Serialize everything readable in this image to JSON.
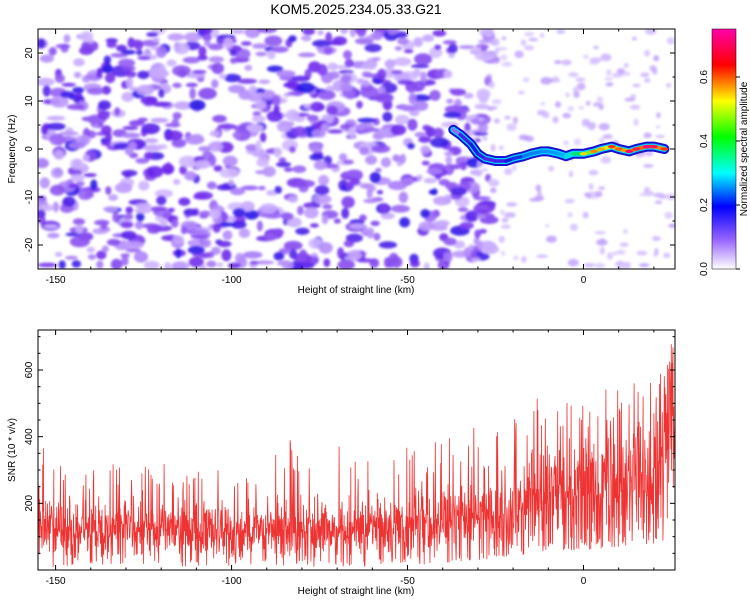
{
  "title": "KOM5.2025.234.05.33.G21",
  "chart_data": [
    {
      "type": "heatmap",
      "xlabel": "Height of straight line (km)",
      "ylabel": "Frequency (Hz)",
      "xlim": [
        -155,
        26
      ],
      "ylim": [
        -25,
        25
      ],
      "xticks": [
        -150,
        -100,
        -50,
        0
      ],
      "xtick_labels": [
        "-150",
        "-100",
        "-50",
        "0"
      ],
      "yticks": [
        -20,
        -10,
        0,
        10,
        20
      ],
      "ytick_labels": [
        "-20",
        "-10",
        "0",
        "10",
        "20"
      ],
      "noise_region_x": [
        -155,
        -32
      ],
      "noise_amplitude_range": [
        0.0,
        0.2
      ],
      "ridge": {
        "description": "dominant spectral ridge",
        "x": [
          -37,
          -35,
          -32,
          -30,
          -28,
          -25,
          -22,
          -20,
          -17,
          -15,
          -12,
          -10,
          -7,
          -5,
          -3,
          0,
          3,
          5,
          8,
          10,
          13,
          15,
          18,
          20,
          23
        ],
        "frequency": [
          4,
          3,
          1,
          -1,
          -2,
          -2.5,
          -2.5,
          -2,
          -1.5,
          -1,
          -0.5,
          -0.5,
          -1,
          -1.5,
          -1,
          -1,
          -0.5,
          0,
          0.5,
          0,
          -0.5,
          0,
          0.5,
          0.5,
          0
        ],
        "amplitude": [
          0.1,
          0.2,
          0.3,
          0.28,
          0.25,
          0.22,
          0.28,
          0.3,
          0.34,
          0.38,
          0.35,
          0.4,
          0.36,
          0.42,
          0.45,
          0.55,
          0.6,
          0.58,
          0.65,
          0.62,
          0.7,
          0.68,
          0.72,
          0.7,
          0.65
        ]
      },
      "colorbar": {
        "label": "Normalized spectral amplitude",
        "range": [
          0.0,
          0.75
        ],
        "ticks": [
          0.0,
          0.2,
          0.4,
          0.6
        ],
        "tick_labels": [
          "0.0",
          "0.2",
          "0.4",
          "0.6"
        ]
      }
    },
    {
      "type": "line",
      "xlabel": "Height of straight line (km)",
      "ylabel": "SNR (10 * v/v)",
      "xlim": [
        -155,
        26
      ],
      "ylim": [
        0,
        720
      ],
      "xticks": [
        -150,
        -100,
        -50,
        0
      ],
      "xtick_labels": [
        "-150",
        "-100",
        "-50",
        "0"
      ],
      "yticks": [
        200,
        400,
        600
      ],
      "ytick_labels": [
        "200",
        "400",
        "600"
      ],
      "color": "#ee3333",
      "series": [
        {
          "name": "SNR",
          "x": [
            -155,
            -140,
            -125,
            -110,
            -95,
            -80,
            -65,
            -50,
            -40,
            -30,
            -20,
            -10,
            0,
            10,
            20,
            26
          ],
          "mean": [
            130,
            120,
            120,
            115,
            115,
            120,
            125,
            130,
            140,
            165,
            190,
            215,
            240,
            280,
            320,
            380
          ],
          "max": [
            400,
            320,
            330,
            300,
            300,
            420,
            360,
            380,
            400,
            440,
            480,
            540,
            560,
            560,
            600,
            720
          ],
          "min": [
            10,
            10,
            10,
            10,
            10,
            10,
            10,
            15,
            20,
            30,
            40,
            60,
            60,
            70,
            80,
            100
          ]
        }
      ]
    }
  ]
}
